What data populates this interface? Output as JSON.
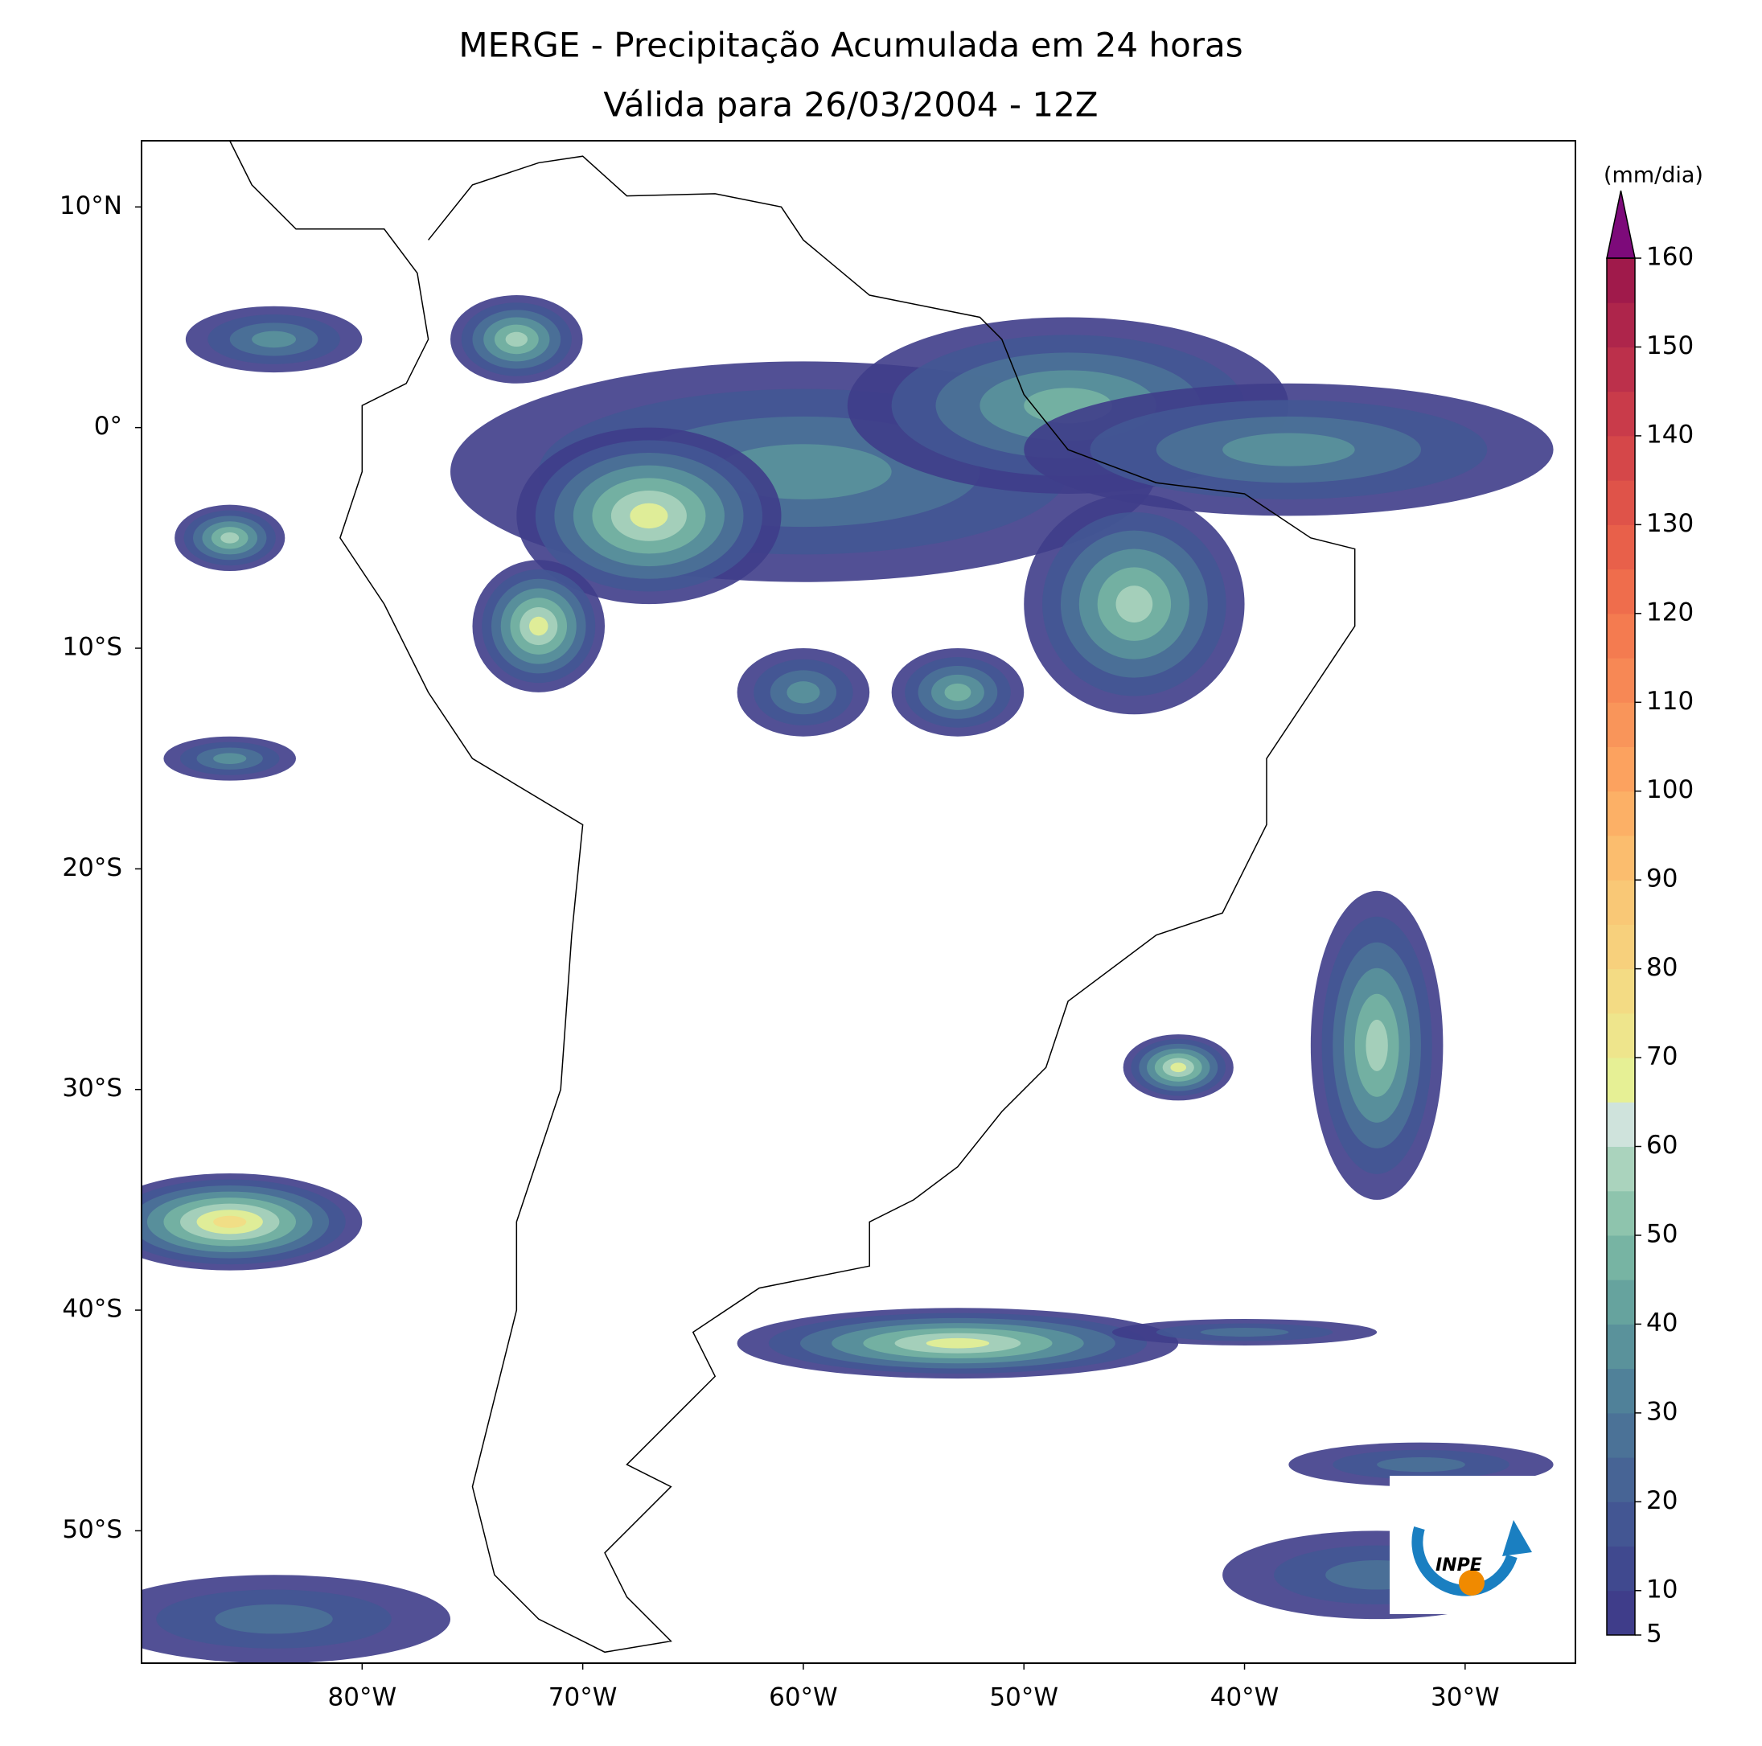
{
  "map": {
    "title": "MERGE - Precipitação Acumulada em 24 horas",
    "subtitle": "Válida para 26/03/2004 - 12Z",
    "xlim": [
      -90,
      -25
    ],
    "ylim": [
      -56,
      13
    ],
    "xticks": [
      {
        "value": -80,
        "label": "80°W"
      },
      {
        "value": -70,
        "label": "70°W"
      },
      {
        "value": -60,
        "label": "60°W"
      },
      {
        "value": -50,
        "label": "50°W"
      },
      {
        "value": -40,
        "label": "40°W"
      },
      {
        "value": -30,
        "label": "30°W"
      }
    ],
    "yticks": [
      {
        "value": 10,
        "label": "10°N"
      },
      {
        "value": 0,
        "label": "0°"
      },
      {
        "value": -10,
        "label": "10°S"
      },
      {
        "value": -20,
        "label": "20°S"
      },
      {
        "value": -30,
        "label": "30°S"
      },
      {
        "value": -40,
        "label": "40°S"
      },
      {
        "value": -50,
        "label": "50°S"
      }
    ],
    "colorbar": {
      "label": "(mm/dia)",
      "lim": [
        5,
        160
      ],
      "ticks": [
        5,
        10,
        20,
        30,
        40,
        50,
        60,
        70,
        80,
        90,
        100,
        110,
        120,
        130,
        140,
        150,
        160
      ],
      "colors": [
        "#3f3d8a",
        "#40498f",
        "#435693",
        "#476495",
        "#4b7297",
        "#508199",
        "#5a929b",
        "#66a39e",
        "#77b4a3",
        "#8ec4ad",
        "#aad3bd",
        "#cfe3dc",
        "#e6f095",
        "#eee58c",
        "#f3db84",
        "#f7d07c",
        "#f9c876",
        "#fbbd6e",
        "#fcb066",
        "#fca25f",
        "#f9955a",
        "#f78855",
        "#f47b50",
        "#ef6d4c",
        "#e8604a",
        "#df5349",
        "#d54749",
        "#c93b4a",
        "#bc304b",
        "#ae254b",
        "#a01a4b"
      ],
      "extend_color": "#7d0a7a"
    },
    "logo": "INPE"
  }
}
